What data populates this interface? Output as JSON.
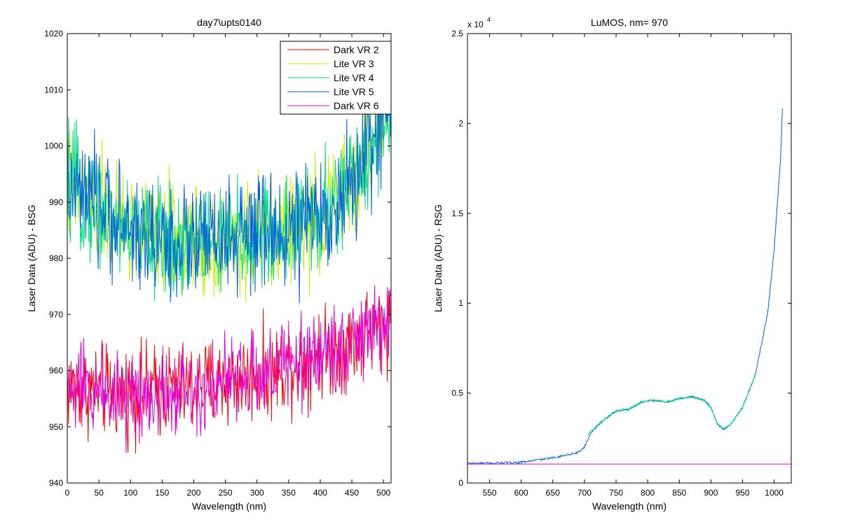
{
  "figure": {
    "background": "#ffffff"
  },
  "chart_data": [
    {
      "type": "line",
      "title": "day7\\upts0140",
      "xlabel": "Wavelength (nm)",
      "ylabel": "Laser Data (ADU) - BSG",
      "xlim": [
        0,
        512
      ],
      "ylim": [
        940,
        1020
      ],
      "xticks": [
        0,
        50,
        100,
        150,
        200,
        250,
        300,
        350,
        400,
        450,
        500
      ],
      "yticks": [
        940,
        950,
        960,
        970,
        980,
        990,
        1000,
        1010,
        1020
      ],
      "grid": false,
      "legend_position": "top-right",
      "x_range": [
        0,
        511
      ],
      "series": [
        {
          "name": "Dark VR 2",
          "color": "#ff0000",
          "trend_x": [
            0,
            100,
            200,
            300,
            400,
            450,
            512
          ],
          "trend_y": [
            957,
            956,
            957,
            959,
            963,
            965,
            969
          ],
          "noise_amplitude": 4
        },
        {
          "name": "Lite VR 3",
          "color": "#c8f000",
          "trend_x": [
            0,
            20,
            50,
            100,
            150,
            200,
            250,
            300,
            350,
            400,
            430,
            460,
            490,
            512
          ],
          "trend_y": [
            993,
            991,
            989,
            985,
            983,
            983,
            983,
            984,
            985,
            987,
            990,
            995,
            1003,
            1008
          ],
          "noise_amplitude": 5
        },
        {
          "name": "Lite VR 4",
          "color": "#00e080",
          "trend_x": [
            0,
            20,
            50,
            100,
            150,
            200,
            250,
            300,
            350,
            400,
            430,
            460,
            490,
            512
          ],
          "trend_y": [
            993,
            991,
            989,
            985,
            983,
            983,
            983,
            984,
            985,
            987,
            990,
            995,
            1003,
            1008
          ],
          "noise_amplitude": 5
        },
        {
          "name": "Lite VR 5",
          "color": "#0060e0",
          "trend_x": [
            0,
            20,
            50,
            100,
            150,
            200,
            250,
            300,
            350,
            400,
            430,
            460,
            490,
            512
          ],
          "trend_y": [
            993,
            991,
            989,
            985,
            983,
            983,
            983,
            984,
            985,
            987,
            990,
            995,
            1003,
            1008
          ],
          "noise_amplitude": 5
        },
        {
          "name": "Dark VR 6",
          "color": "#e000e0",
          "trend_x": [
            0,
            100,
            200,
            300,
            400,
            450,
            512
          ],
          "trend_y": [
            957,
            956,
            957,
            959,
            963,
            965,
            969
          ],
          "noise_amplitude": 4
        }
      ]
    },
    {
      "type": "line",
      "title": "LuMOS, nm= 970",
      "xlabel": "Wavelength (nm)",
      "ylabel": "Laser Data (ADU) - RSG",
      "scale_base": "x 10",
      "scale_exponent": "4",
      "xlim": [
        515,
        1027
      ],
      "ylim": [
        0,
        2.5
      ],
      "xticks": [
        550,
        600,
        650,
        700,
        750,
        800,
        850,
        900,
        950,
        1000
      ],
      "yticks": [
        0,
        0.5,
        1,
        1.5,
        2,
        2.5
      ],
      "ytick_labels": [
        "0",
        "0.5",
        "1",
        "1.5",
        "2",
        "2.5"
      ],
      "grid": false,
      "series": [
        {
          "color": "#0060e0",
          "x": [
            515,
            550,
            600,
            650,
            690,
            700,
            710,
            730,
            750,
            770,
            790,
            810,
            830,
            850,
            870,
            890,
            900,
            910,
            920,
            930,
            950,
            970,
            990,
            1000,
            1010,
            1013
          ],
          "y": [
            0.11,
            0.11,
            0.115,
            0.14,
            0.17,
            0.2,
            0.28,
            0.35,
            0.4,
            0.41,
            0.45,
            0.46,
            0.45,
            0.47,
            0.48,
            0.46,
            0.42,
            0.33,
            0.3,
            0.32,
            0.42,
            0.6,
            0.95,
            1.3,
            1.8,
            2.08
          ]
        },
        {
          "color": "#00e080",
          "x": [
            705,
            730,
            750,
            770,
            790,
            810,
            830,
            850,
            870,
            890,
            900,
            910,
            920,
            930,
            950,
            970
          ],
          "y": [
            0.27,
            0.35,
            0.4,
            0.41,
            0.45,
            0.46,
            0.45,
            0.47,
            0.48,
            0.46,
            0.42,
            0.33,
            0.3,
            0.32,
            0.42,
            0.6
          ]
        },
        {
          "color": "#e000e0",
          "x": [
            515,
            1027
          ],
          "y": [
            0.105,
            0.105
          ]
        }
      ]
    }
  ]
}
